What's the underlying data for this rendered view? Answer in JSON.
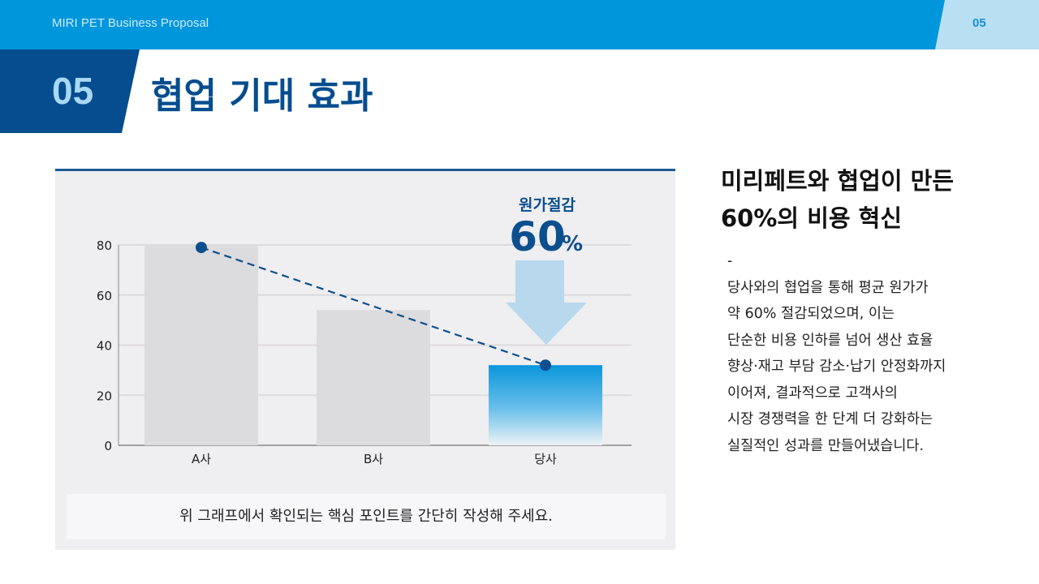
{
  "header": {
    "brand": "MIRI PET Business Proposal",
    "page_number": "05"
  },
  "section": {
    "number": "05",
    "title": "협업 기대 효과"
  },
  "callout": {
    "label": "원가절감",
    "value": "60",
    "unit": "%"
  },
  "note": "위 그래프에서 확인되는 핵심 포인트를 간단히 작성해 주세요.",
  "right_panel": {
    "title_line1": "미리페트와 협업이 만든",
    "title_line2": "60%의 비용 혁신",
    "dash": "-",
    "body_lines": [
      "당사와의 협업을 통해 평균 원가가",
      "약 60% 절감되었으며, 이는",
      "단순한 비용 인하를 넘어 생산 효율",
      "향상·재고 부담 감소·납기 안정화까지",
      "이어져, 결과적으로 고객사의",
      "시장 경쟁력을 한 단계 더 강화하는",
      "실질적인 성과를 만들어냈습니다."
    ]
  },
  "colors": {
    "topbar": "#0096dc",
    "navy": "#054d8f",
    "bar_gray": "#dcdbdd",
    "bar_accent": "#0a96dc",
    "arrow": "#b8d8ee"
  },
  "chart_data": {
    "type": "bar",
    "categories": [
      "A사",
      "B사",
      "당사"
    ],
    "values": [
      80,
      54,
      32
    ],
    "line_overlay": {
      "style": "dashed",
      "values": [
        79,
        null,
        32
      ]
    },
    "title": "",
    "xlabel": "",
    "ylabel": "",
    "ylim": [
      0,
      80
    ],
    "yticks": [
      0,
      20,
      40,
      60,
      80
    ],
    "grid": true,
    "annotation": "원가절감 60%"
  }
}
